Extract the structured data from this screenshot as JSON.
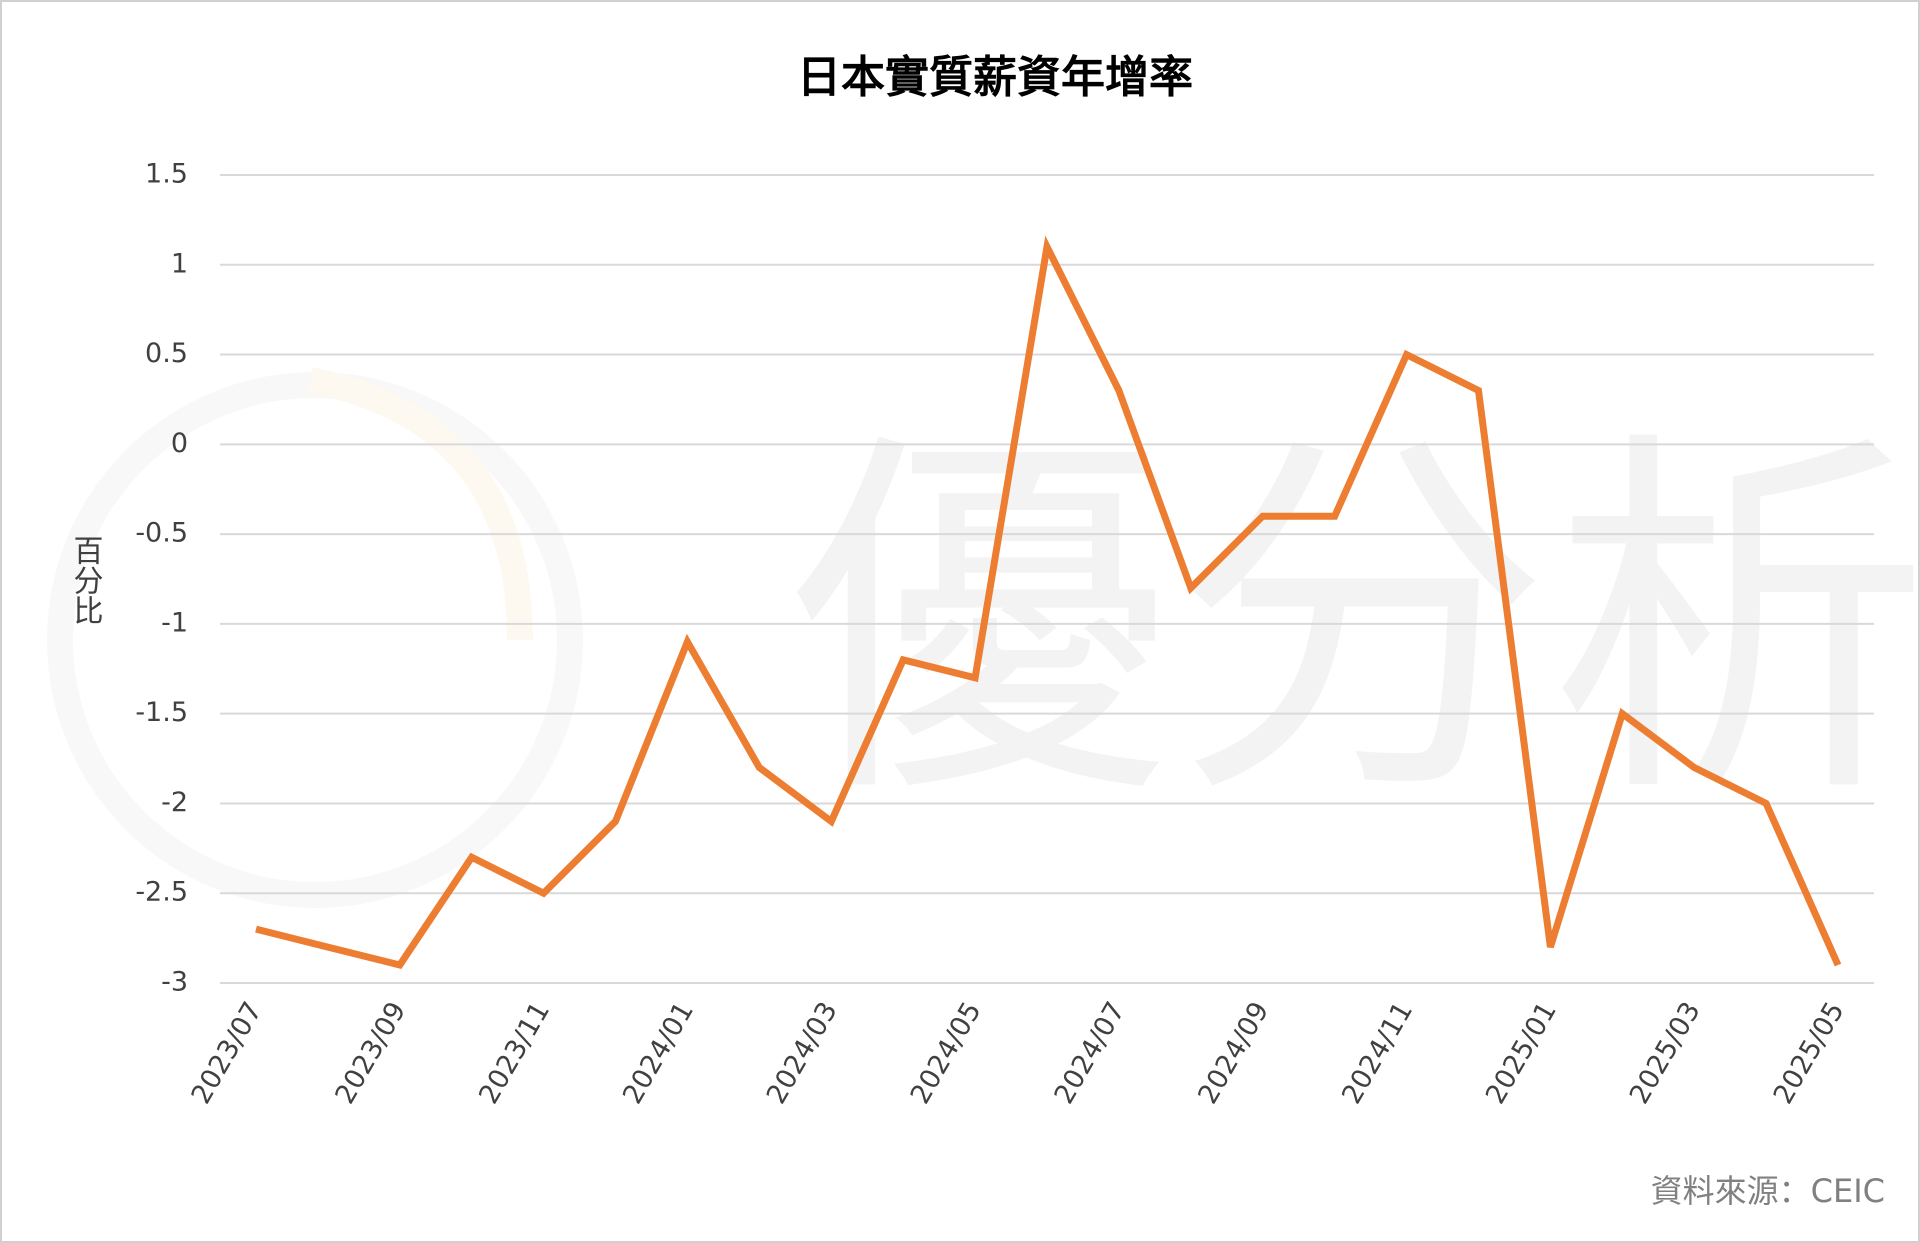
{
  "chart_data": {
    "type": "line",
    "title": "日本實質薪資年增率",
    "y_label": "百分比",
    "source": "資料來源：CEIC",
    "watermark": "優分析",
    "categories": [
      "2023/07",
      null,
      "2023/09",
      null,
      "2023/11",
      null,
      "2024/01",
      null,
      "2024/03",
      null,
      "2024/05",
      null,
      "2024/07",
      null,
      "2024/09",
      null,
      "2024/11",
      null,
      "2025/01",
      null,
      "2025/03",
      null,
      "2025/05"
    ],
    "values": [
      -2.7,
      -2.8,
      -2.9,
      -2.3,
      -2.5,
      -2.1,
      -1.1,
      -1.8,
      -2.1,
      -1.2,
      -1.3,
      1.1,
      0.3,
      -0.8,
      -0.4,
      -0.4,
      0.5,
      0.3,
      -2.8,
      -1.5,
      -1.8,
      -2.0,
      -2.9
    ],
    "color": "#ed7d31",
    "ylim": [
      -3,
      1.5
    ],
    "yticks": [
      1.5,
      1,
      0.5,
      0,
      -0.5,
      -1,
      -1.5,
      -2,
      -2.5,
      -3
    ],
    "grid": true
  }
}
